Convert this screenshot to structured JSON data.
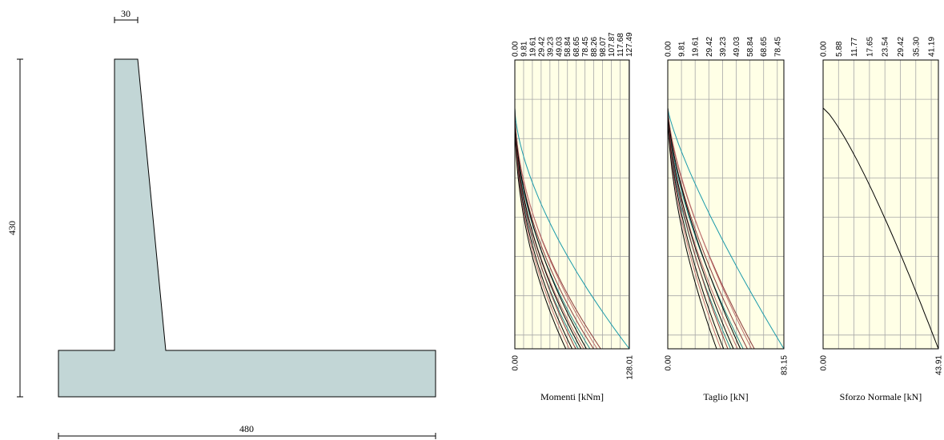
{
  "wall": {
    "dimensions": {
      "top_width": "30",
      "height": "430",
      "base_width": "480"
    },
    "fill_color": "#c2d6d6"
  },
  "chart_data": [
    {
      "type": "line",
      "title": "Momenti [kNm]",
      "top_ticks": [
        "0.00",
        "9.81",
        "19.61",
        "29.42",
        "39.23",
        "49.03",
        "58.84",
        "68.65",
        "78.45",
        "88.26",
        "98.07",
        "107.87",
        "117.68",
        "127.49"
      ],
      "bottom_labels": [
        "0.00",
        "128.01"
      ],
      "xlim": [
        0,
        128.01
      ],
      "ylim": [
        0,
        1
      ],
      "background": "#ffffe6",
      "curve_colors": [
        "#000000",
        "#8b3a3a",
        "#c07070",
        "#2a8a8a",
        "#1a9aaa"
      ],
      "series": [
        {
          "color": "#1a9aaa",
          "end": 128.01,
          "shape": 1.6
        },
        {
          "color": "#8b3a3a",
          "end": 96,
          "shape": 1.9
        },
        {
          "color": "#c07070",
          "end": 92,
          "shape": 1.85
        },
        {
          "color": "#8b3a3a",
          "end": 88,
          "shape": 1.95
        },
        {
          "color": "#2a8a8a",
          "end": 84,
          "shape": 2.0
        },
        {
          "color": "#000000",
          "end": 80,
          "shape": 1.9
        },
        {
          "color": "#c07070",
          "end": 77,
          "shape": 2.05
        },
        {
          "color": "#000000",
          "end": 74,
          "shape": 2.0
        },
        {
          "color": "#2a8a8a",
          "end": 71,
          "shape": 2.1
        },
        {
          "color": "#8b3a3a",
          "end": 68,
          "shape": 2.0
        },
        {
          "color": "#000000",
          "end": 64,
          "shape": 2.1
        },
        {
          "color": "#c07070",
          "end": 61,
          "shape": 2.15
        },
        {
          "color": "#000000",
          "end": 57,
          "shape": 2.2
        }
      ]
    },
    {
      "type": "line",
      "title": "Taglio [kN]",
      "top_ticks": [
        "0.00",
        "9.81",
        "19.61",
        "29.42",
        "39.23",
        "49.03",
        "58.84",
        "68.65",
        "78.45"
      ],
      "bottom_labels": [
        "0.00",
        "83.15"
      ],
      "xlim": [
        0,
        83.15
      ],
      "ylim": [
        0,
        1
      ],
      "background": "#ffffe6",
      "series": [
        {
          "color": "#1a9aaa",
          "end": 83.15,
          "shape": 1.25
        },
        {
          "color": "#8b3a3a",
          "end": 62,
          "shape": 1.5
        },
        {
          "color": "#c07070",
          "end": 60,
          "shape": 1.45
        },
        {
          "color": "#8b3a3a",
          "end": 57,
          "shape": 1.55
        },
        {
          "color": "#2a8a8a",
          "end": 54,
          "shape": 1.6
        },
        {
          "color": "#000000",
          "end": 52,
          "shape": 1.5
        },
        {
          "color": "#c07070",
          "end": 50,
          "shape": 1.65
        },
        {
          "color": "#000000",
          "end": 47,
          "shape": 1.6
        },
        {
          "color": "#2a8a8a",
          "end": 45,
          "shape": 1.7
        },
        {
          "color": "#8b3a3a",
          "end": 43,
          "shape": 1.6
        },
        {
          "color": "#000000",
          "end": 40,
          "shape": 1.7
        },
        {
          "color": "#c07070",
          "end": 38,
          "shape": 1.75
        },
        {
          "color": "#000000",
          "end": 35,
          "shape": 1.8
        }
      ]
    },
    {
      "type": "line",
      "title": "Sforzo Normale [kN]",
      "top_ticks": [
        "0.00",
        "5.88",
        "11.77",
        "17.65",
        "23.54",
        "29.42",
        "35.30",
        "41.19"
      ],
      "bottom_labels": [
        "0.00",
        "43.91"
      ],
      "xlim": [
        0,
        43.91
      ],
      "ylim": [
        0,
        1
      ],
      "background": "#ffffe6",
      "series": [
        {
          "color": "#000000",
          "end": 43.91,
          "shape": 0.8
        }
      ]
    }
  ]
}
